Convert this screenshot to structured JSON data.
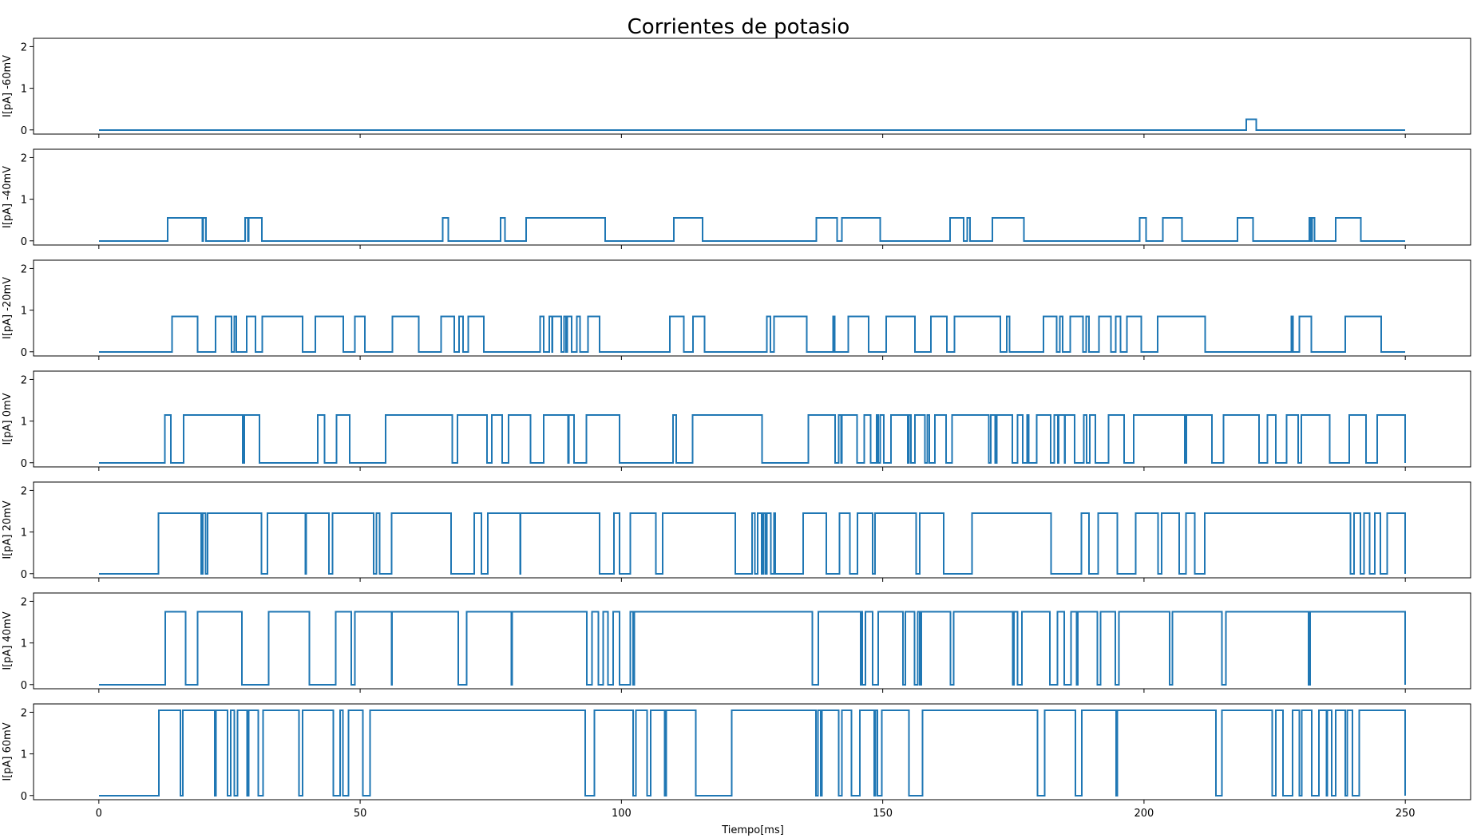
{
  "chart_data": {
    "type": "line",
    "title": "Corrientes de potasio",
    "xlabel": "Tiempo[ms]",
    "xlim": [
      -12.5,
      262.5
    ],
    "xticks": [
      0,
      50,
      100,
      150,
      200,
      250
    ],
    "ylim": [
      -0.1,
      2.2
    ],
    "yticks": [
      0,
      1,
      2
    ],
    "line_color": "#1f77b4",
    "grid": false,
    "panels": [
      {
        "ylabel": "I[pA] -60mV",
        "level": 0.25,
        "segments": [
          [
            219.6,
            221.5
          ]
        ]
      },
      {
        "ylabel": "I[pA] -40mV",
        "level": 0.55,
        "segments": [
          [
            13.2,
            19.8
          ],
          [
            20.0,
            20.5
          ],
          [
            28.0,
            28.5
          ],
          [
            28.7,
            31.2
          ],
          [
            65.8,
            66.9
          ],
          [
            76.9,
            77.7
          ],
          [
            81.8,
            96.9
          ],
          [
            110.0,
            115.5
          ],
          [
            137.3,
            141.3
          ],
          [
            142.2,
            149.5
          ],
          [
            162.9,
            165.5
          ],
          [
            166.2,
            166.7
          ],
          [
            171.0,
            177.0
          ],
          [
            199.2,
            200.4
          ],
          [
            203.6,
            207.3
          ],
          [
            217.9,
            220.9
          ],
          [
            231.6,
            231.9
          ],
          [
            232.2,
            232.6
          ],
          [
            236.7,
            241.5
          ]
        ]
      },
      {
        "ylabel": "I[pA] -20mV",
        "level": 0.85,
        "segments": [
          [
            14.0,
            18.9
          ],
          [
            22.3,
            25.4
          ],
          [
            25.9,
            26.3
          ],
          [
            28.3,
            30.0
          ],
          [
            31.3,
            39.0
          ],
          [
            41.4,
            46.8
          ],
          [
            49.0,
            50.9
          ],
          [
            56.2,
            61.2
          ],
          [
            65.5,
            68.0
          ],
          [
            68.9,
            69.7
          ],
          [
            70.7,
            73.7
          ],
          [
            84.4,
            85.1
          ],
          [
            86.2,
            86.7
          ],
          [
            86.8,
            88.5
          ],
          [
            89.0,
            89.4
          ],
          [
            89.6,
            90.5
          ],
          [
            91.5,
            92.1
          ],
          [
            93.6,
            95.8
          ],
          [
            109.3,
            111.9
          ],
          [
            113.7,
            115.9
          ],
          [
            127.8,
            128.5
          ],
          [
            129.2,
            135.5
          ],
          [
            140.5,
            140.8
          ],
          [
            143.4,
            147.3
          ],
          [
            150.7,
            156.2
          ],
          [
            159.2,
            162.3
          ],
          [
            163.7,
            172.5
          ],
          [
            173.7,
            174.3
          ],
          [
            180.8,
            183.3
          ],
          [
            183.9,
            184.4
          ],
          [
            185.9,
            188.3
          ],
          [
            188.9,
            189.5
          ],
          [
            191.4,
            193.7
          ],
          [
            194.6,
            195.5
          ],
          [
            196.7,
            199.5
          ],
          [
            202.6,
            211.7
          ],
          [
            228.2,
            228.5
          ],
          [
            229.7,
            232.0
          ],
          [
            238.5,
            245.4
          ]
        ]
      },
      {
        "ylabel": "I[pA] 0mV",
        "level": 1.15,
        "segments": [
          [
            12.6,
            13.8
          ],
          [
            16.2,
            27.5
          ],
          [
            27.8,
            30.7
          ],
          [
            41.9,
            43.2
          ],
          [
            45.5,
            48.0
          ],
          [
            54.9,
            67.6
          ],
          [
            68.6,
            74.3
          ],
          [
            75.2,
            77.2
          ],
          [
            78.4,
            82.6
          ],
          [
            85.1,
            89.8
          ],
          [
            89.9,
            90.9
          ],
          [
            93.3,
            99.6
          ],
          [
            109.9,
            110.5
          ],
          [
            113.6,
            126.9
          ],
          [
            135.8,
            140.9
          ],
          [
            141.6,
            142.0
          ],
          [
            142.2,
            145.1
          ],
          [
            146.5,
            147.7
          ],
          [
            148.8,
            149.1
          ],
          [
            149.5,
            150.2
          ],
          [
            151.6,
            154.8
          ],
          [
            155.0,
            155.4
          ],
          [
            156.2,
            158.1
          ],
          [
            158.5,
            158.9
          ],
          [
            160.0,
            162.1
          ],
          [
            163.3,
            170.3
          ],
          [
            170.7,
            171.5
          ],
          [
            171.8,
            174.8
          ],
          [
            175.8,
            176.8
          ],
          [
            177.6,
            177.9
          ],
          [
            179.5,
            182.1
          ],
          [
            182.8,
            183.5
          ],
          [
            183.7,
            184.8
          ],
          [
            184.9,
            186.7
          ],
          [
            188.5,
            189.0
          ],
          [
            189.6,
            190.7
          ],
          [
            193.2,
            196.2
          ],
          [
            198.0,
            207.8
          ],
          [
            208.1,
            213.0
          ],
          [
            215.2,
            222.0
          ],
          [
            223.6,
            225.2
          ],
          [
            227.3,
            229.5
          ],
          [
            230.1,
            235.5
          ],
          [
            239.3,
            242.5
          ],
          [
            244.6,
            250.0
          ]
        ]
      },
      {
        "ylabel": "I[pA] 20mV",
        "level": 1.45,
        "segments": [
          [
            11.4,
            19.6
          ],
          [
            19.9,
            20.4
          ],
          [
            20.8,
            31.1
          ],
          [
            32.3,
            39.5
          ],
          [
            39.7,
            44.0
          ],
          [
            44.7,
            52.6
          ],
          [
            53.1,
            53.7
          ],
          [
            56.0,
            67.4
          ],
          [
            71.8,
            73.2
          ],
          [
            74.4,
            80.6
          ],
          [
            80.7,
            95.8
          ],
          [
            98.6,
            99.6
          ],
          [
            101.7,
            106.6
          ],
          [
            107.9,
            121.8
          ],
          [
            125.0,
            125.5
          ],
          [
            126.1,
            126.8
          ],
          [
            127.1,
            127.5
          ],
          [
            127.8,
            128.6
          ],
          [
            129.2,
            129.4
          ],
          [
            134.8,
            139.2
          ],
          [
            141.7,
            143.7
          ],
          [
            145.2,
            148.1
          ],
          [
            148.5,
            156.4
          ],
          [
            157.1,
            161.7
          ],
          [
            167.1,
            182.2
          ],
          [
            188.0,
            189.5
          ],
          [
            191.2,
            194.9
          ],
          [
            198.4,
            202.7
          ],
          [
            203.4,
            206.7
          ],
          [
            208.0,
            209.7
          ],
          [
            211.6,
            239.5
          ],
          [
            240.2,
            241.4
          ],
          [
            242.1,
            243.2
          ],
          [
            244.2,
            245.2
          ],
          [
            246.5,
            250.0
          ]
        ]
      },
      {
        "ylabel": "I[pA] 40mV",
        "level": 1.75,
        "segments": [
          [
            12.7,
            16.6
          ],
          [
            18.9,
            27.4
          ],
          [
            32.5,
            40.3
          ],
          [
            45.3,
            48.3
          ],
          [
            49.0,
            56.0
          ],
          [
            56.1,
            68.8
          ],
          [
            70.4,
            78.9
          ],
          [
            79.1,
            93.4
          ],
          [
            94.4,
            95.6
          ],
          [
            96.5,
            97.4
          ],
          [
            98.4,
            99.6
          ],
          [
            101.7,
            102.2
          ],
          [
            102.5,
            136.5
          ],
          [
            137.7,
            145.8
          ],
          [
            146.0,
            146.1
          ],
          [
            146.7,
            148.1
          ],
          [
            149.1,
            153.9
          ],
          [
            154.3,
            156.1
          ],
          [
            156.7,
            157.1
          ],
          [
            157.4,
            163.0
          ],
          [
            163.6,
            174.9
          ],
          [
            175.1,
            175.8
          ],
          [
            176.6,
            182.0
          ],
          [
            183.4,
            184.7
          ],
          [
            186.0,
            187.1
          ],
          [
            187.3,
            191.1
          ],
          [
            191.7,
            194.5
          ],
          [
            195.2,
            204.9
          ],
          [
            205.4,
            214.9
          ],
          [
            215.7,
            231.5
          ],
          [
            231.8,
            250.0
          ]
        ]
      },
      {
        "ylabel": "I[pA] 60mV",
        "level": 2.05,
        "segments": [
          [
            11.5,
            15.6
          ],
          [
            16.1,
            22.2
          ],
          [
            22.4,
            24.6
          ],
          [
            25.2,
            25.9
          ],
          [
            26.5,
            28.4
          ],
          [
            28.7,
            30.5
          ],
          [
            31.4,
            38.3
          ],
          [
            39.0,
            44.9
          ],
          [
            46.2,
            46.7
          ],
          [
            47.8,
            50.5
          ],
          [
            51.9,
            93.1
          ],
          [
            94.8,
            102.2
          ],
          [
            102.8,
            104.9
          ],
          [
            105.6,
            108.3
          ],
          [
            108.6,
            114.2
          ],
          [
            121.1,
            137.2
          ],
          [
            137.6,
            138.1
          ],
          [
            138.4,
            141.6
          ],
          [
            142.2,
            144.0
          ],
          [
            145.6,
            148.4
          ],
          [
            148.6,
            149.0
          ],
          [
            149.8,
            155.0
          ],
          [
            157.6,
            179.6
          ],
          [
            181.0,
            186.9
          ],
          [
            188.1,
            194.7
          ],
          [
            194.9,
            213.8
          ],
          [
            214.9,
            224.5
          ],
          [
            225.2,
            226.6
          ],
          [
            228.4,
            229.7
          ],
          [
            230.2,
            232.1
          ],
          [
            233.5,
            234.9
          ],
          [
            235.1,
            235.9
          ],
          [
            236.7,
            238.5
          ],
          [
            238.9,
            239.9
          ],
          [
            241.2,
            250.0
          ]
        ]
      }
    ]
  }
}
